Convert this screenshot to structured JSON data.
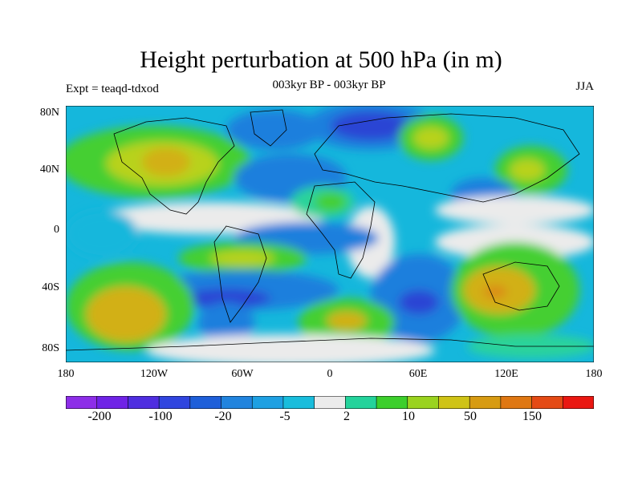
{
  "title": "Height perturbation at 500 hPa (in m)",
  "subtitle": "003kyr BP - 003kyr BP",
  "left_label": "Expt = teaqd-tdxod",
  "right_label": "JJA",
  "lat_ticks": [
    "80N",
    "40N",
    "0",
    "40S",
    "80S"
  ],
  "lon_ticks": [
    "180",
    "120W",
    "60W",
    "0",
    "60E",
    "120E",
    "180"
  ],
  "colorbar": {
    "colors": [
      "#8d2ee8",
      "#6f23e6",
      "#4f2ee0",
      "#3045df",
      "#1e5fd9",
      "#2184de",
      "#1ea0e2",
      "#19bddc",
      "#ebebeb",
      "#24d39b",
      "#3ccf2c",
      "#9ad31f",
      "#cfc316",
      "#d79b12",
      "#df7712",
      "#e44a15",
      "#ea1711"
    ],
    "labels": [
      "-200",
      "-100",
      "-20",
      "-5",
      "2",
      "10",
      "50",
      "150"
    ]
  },
  "map_colors": {
    "neg_strong": "#2b44d4",
    "neg_mid": "#1f7fdd",
    "neg_weak": "#15b7dc",
    "neutral": "#ebebeb",
    "pos_weak": "#2bd39b",
    "pos_mid": "#44cf30",
    "pos_yellow": "#b8d21e",
    "pos_gold": "#d2b016",
    "pos_orange": "#dc8a16"
  }
}
